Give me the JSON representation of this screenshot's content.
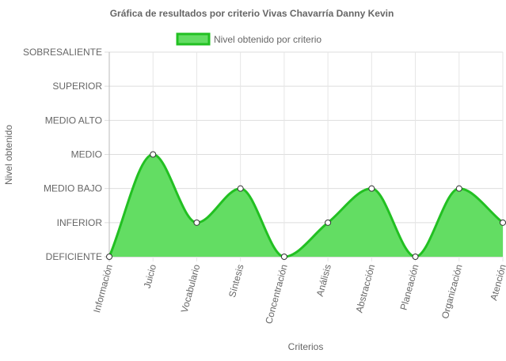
{
  "chart_data": {
    "type": "area",
    "title": "Gráfica de resultados por criterio Vivas Chavarría Danny Kevin",
    "xlabel": "Criterios",
    "ylabel": "Nivel obtenido",
    "legend_position": "top",
    "grid": true,
    "y_levels": [
      "DEFICIENTE",
      "INFERIOR",
      "MEDIO BAJO",
      "MEDIO",
      "MEDIO ALTO",
      "SUPERIOR",
      "SOBRESALIENTE"
    ],
    "ylim": [
      0,
      6
    ],
    "categories": [
      "Información",
      "Juicio",
      "Vocabulario",
      "Síntesis",
      "Concentración",
      "Análisis",
      "Abstracción",
      "Planeación",
      "Organización",
      "Atención"
    ],
    "series": [
      {
        "name": "Nivel obtenido por criterio",
        "values": [
          0,
          3,
          1,
          2,
          0,
          1,
          2,
          0,
          2,
          1
        ],
        "fill_color": "#63dd63",
        "line_color": "#22c022",
        "point_fill": "#ffffff",
        "point_stroke": "#333333"
      }
    ]
  }
}
